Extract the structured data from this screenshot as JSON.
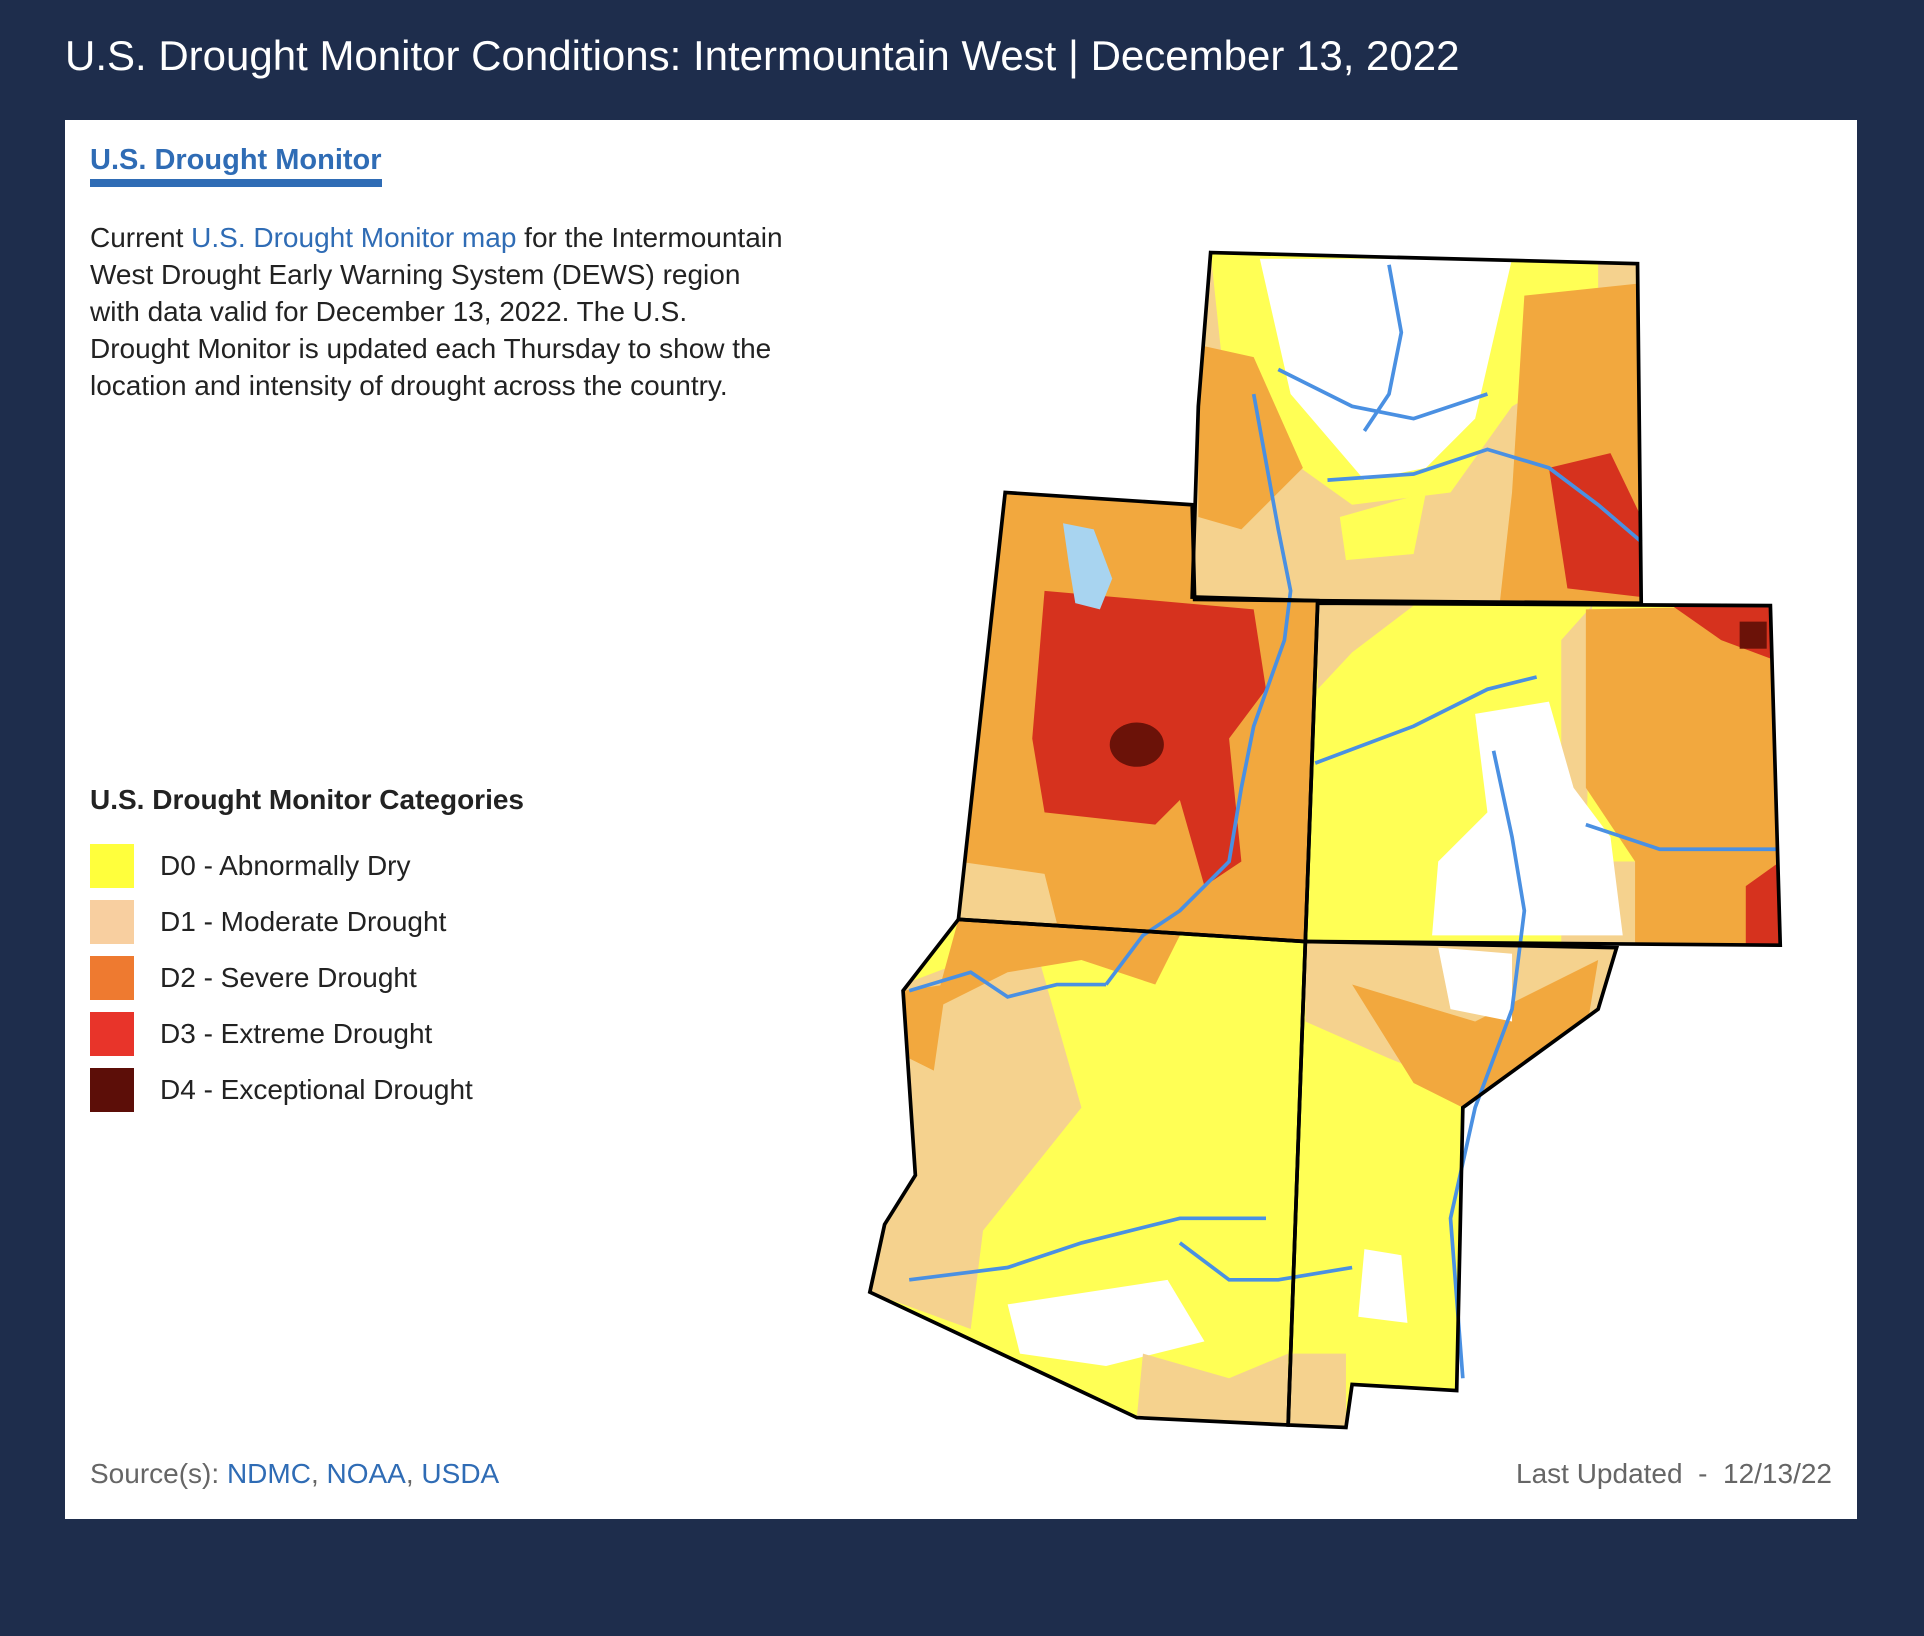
{
  "page": {
    "title": "U.S. Drought Monitor Conditions: Intermountain West | December 13, 2022"
  },
  "card": {
    "heading": "U.S. Drought Monitor",
    "description": {
      "prefix": "Current ",
      "link": "U.S. Drought Monitor map",
      "suffix": " for the Intermountain West Drought Early Warning System (DEWS) region with data valid for December 13, 2022. The U.S. Drought Monitor is updated each Thursday to show the location and intensity of drought across the country."
    },
    "legend": {
      "title": "U.S. Drought Monitor Categories",
      "items": [
        {
          "label": "D0 - Abnormally Dry",
          "color": "#ffff3c"
        },
        {
          "label": "D1 - Moderate Drought",
          "color": "#f8cfa0"
        },
        {
          "label": "D2 - Severe Drought",
          "color": "#ee7a30"
        },
        {
          "label": "D3 - Extreme Drought",
          "color": "#e8342a"
        },
        {
          "label": "D4 - Exceptional Drought",
          "color": "#5c0e08"
        }
      ]
    },
    "footer": {
      "sources_label": "Source(s): ",
      "sources": [
        "NDMC",
        "NOAA",
        "USDA"
      ],
      "last_updated": "Last Updated  -  12/13/22"
    }
  },
  "map": {
    "colors": {
      "D0": "#ffff55",
      "D1": "#f5d28e",
      "D2": "#f2a83e",
      "D3": "#d6321e",
      "D4": "#6b1208",
      "none": "#ffffff",
      "water": "#4a90e2",
      "lake": "#a8d4f0"
    }
  }
}
